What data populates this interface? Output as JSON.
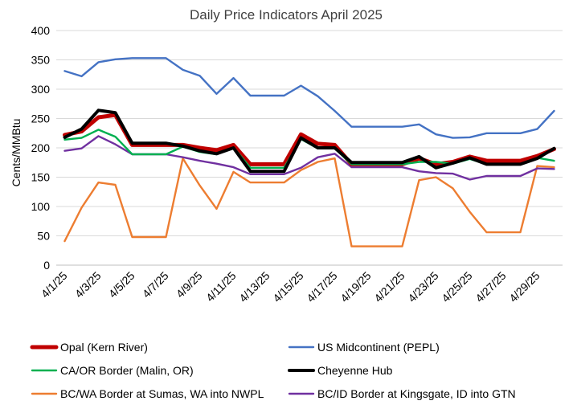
{
  "chart_data": {
    "type": "line",
    "title": "Daily Price Indicators April 2025",
    "ylabel": "Cents/MMBtu",
    "xlabel": "",
    "ylim": [
      0,
      400
    ],
    "yticks": [
      0,
      50,
      100,
      150,
      200,
      250,
      300,
      350,
      400
    ],
    "grid": true,
    "legend_placement": "bottom",
    "x": [
      "4/1/25",
      "4/2/25",
      "4/3/25",
      "4/4/25",
      "4/5/25",
      "4/6/25",
      "4/7/25",
      "4/8/25",
      "4/9/25",
      "4/10/25",
      "4/11/25",
      "4/12/25",
      "4/13/25",
      "4/14/25",
      "4/15/25",
      "4/16/25",
      "4/17/25",
      "4/18/25",
      "4/19/25",
      "4/20/25",
      "4/21/25",
      "4/22/25",
      "4/23/25",
      "4/24/25",
      "4/25/25",
      "4/26/25",
      "4/27/25",
      "4/28/25",
      "4/29/25",
      "4/30/25"
    ],
    "x_tick_labels": [
      "4/1/25",
      "4/3/25",
      "4/5/25",
      "4/7/25",
      "4/9/25",
      "4/11/25",
      "4/13/25",
      "4/15/25",
      "4/17/25",
      "4/19/25",
      "4/21/25",
      "4/23/25",
      "4/25/25",
      "4/27/25",
      "4/29/25"
    ],
    "series": [
      {
        "name": "Opal (Kern River)",
        "color": "#C00000",
        "width": 5,
        "values": [
          222,
          228,
          252,
          256,
          205,
          205,
          205,
          205,
          200,
          196,
          205,
          172,
          172,
          172,
          223,
          207,
          205,
          172,
          172,
          172,
          172,
          182,
          172,
          176,
          185,
          178,
          178,
          178,
          186,
          198
        ]
      },
      {
        "name": "US Midcontinent (PEPL)",
        "color": "#4472C4",
        "width": 2.4,
        "values": [
          331,
          322,
          346,
          351,
          353,
          353,
          353,
          333,
          323,
          292,
          319,
          289,
          289,
          289,
          306,
          288,
          263,
          236,
          236,
          236,
          236,
          240,
          223,
          217,
          218,
          225,
          225,
          225,
          232,
          263
        ]
      },
      {
        "name": "CA/OR Border (Malin, OR)",
        "color": "#00B050",
        "width": 2.4,
        "values": [
          214,
          217,
          231,
          219,
          189,
          189,
          189,
          202,
          193,
          189,
          201,
          166,
          166,
          166,
          215,
          199,
          199,
          172,
          172,
          172,
          172,
          176,
          176,
          173,
          181,
          172,
          172,
          172,
          183,
          178
        ]
      },
      {
        "name": "Cheyenne Hub",
        "color": "#000000",
        "width": 4,
        "values": [
          218,
          232,
          264,
          260,
          208,
          208,
          208,
          203,
          195,
          190,
          200,
          160,
          160,
          160,
          217,
          200,
          200,
          175,
          175,
          175,
          175,
          185,
          166,
          174,
          183,
          172,
          172,
          172,
          182,
          199
        ]
      },
      {
        "name": "BC/WA Border at Sumas, WA into NWPL",
        "color": "#ED7D31",
        "width": 2.4,
        "values": [
          41,
          98,
          141,
          137,
          48,
          48,
          48,
          182,
          136,
          96,
          159,
          141,
          141,
          141,
          162,
          176,
          182,
          32,
          32,
          32,
          32,
          145,
          150,
          131,
          91,
          56,
          56,
          56,
          169,
          167
        ]
      },
      {
        "name": "BC/ID Border at Kingsgate, ID into GTN",
        "color": "#7030A0",
        "width": 2.4,
        "values": [
          195,
          199,
          220,
          206,
          189,
          189,
          189,
          184,
          178,
          173,
          167,
          155,
          155,
          155,
          166,
          184,
          190,
          167,
          167,
          167,
          167,
          160,
          157,
          156,
          146,
          152,
          152,
          152,
          165,
          164
        ]
      }
    ]
  }
}
